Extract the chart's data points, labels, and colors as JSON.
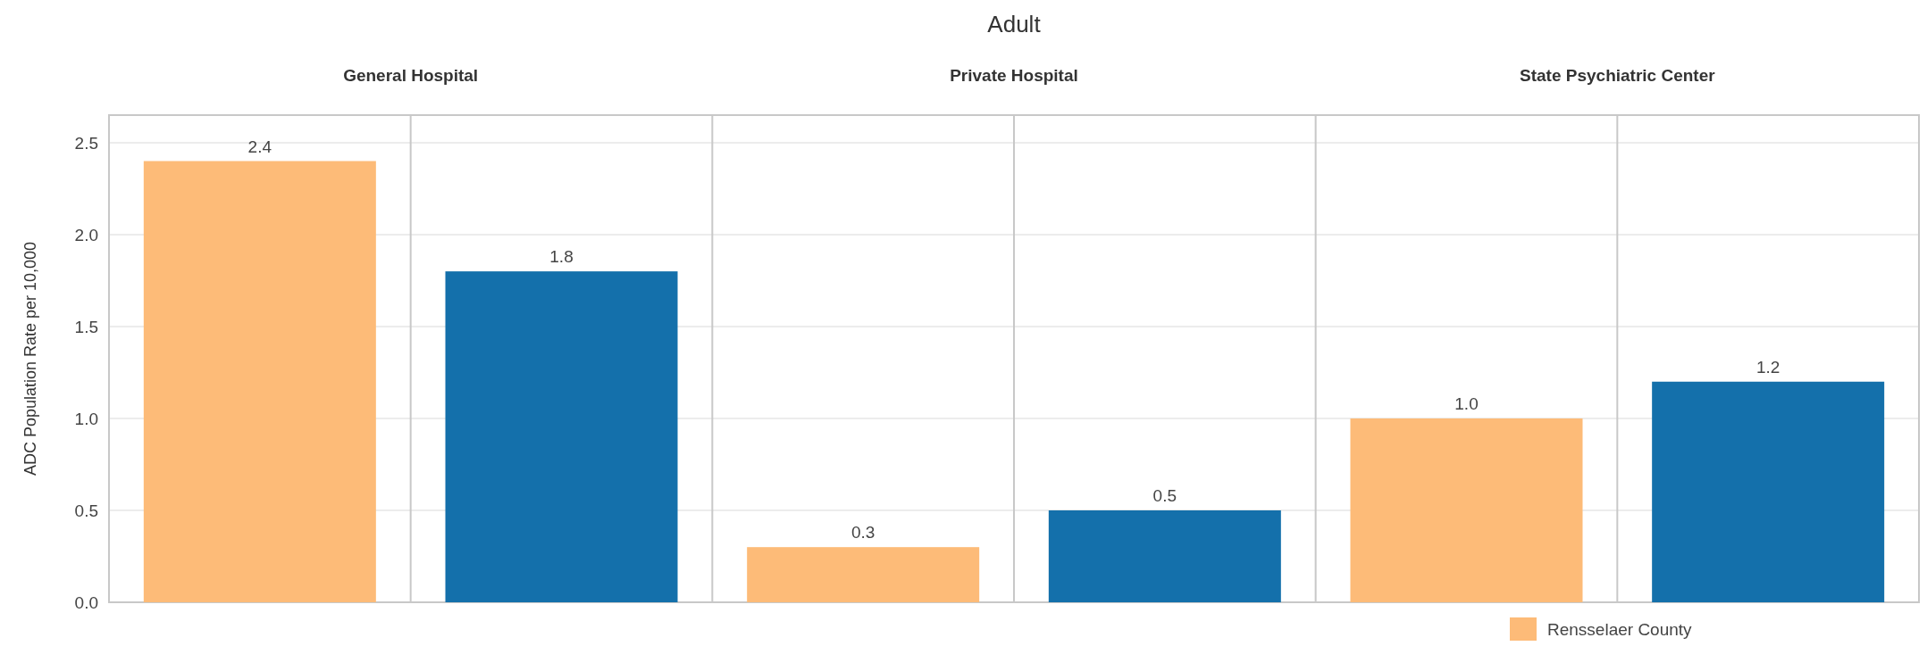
{
  "chart_data": {
    "type": "bar",
    "title": "Adult",
    "ylabel": "ADC Population Rate per 10,000",
    "categories": [
      "General Hospital",
      "Private Hospital",
      "State Psychiatric Center"
    ],
    "series": [
      {
        "name": "Rensselaer County",
        "color": "#fdbb78",
        "values": [
          2.4,
          0.3,
          1.0
        ],
        "value_labels": [
          "2.4",
          "0.3",
          "1.0"
        ]
      },
      {
        "color": "#1470ab",
        "values": [
          1.8,
          0.5,
          1.2
        ],
        "value_labels": [
          "1.8",
          "0.5",
          "1.2"
        ]
      }
    ],
    "ylim": [
      0,
      2.65
    ],
    "yticks": [
      {
        "value": 0,
        "label": "0.0"
      },
      0.5,
      {
        "value": 1,
        "label": "1.0"
      },
      1.5,
      {
        "value": 2,
        "label": "2.0"
      },
      2.5
    ],
    "grid": true,
    "legend": "bottom"
  }
}
